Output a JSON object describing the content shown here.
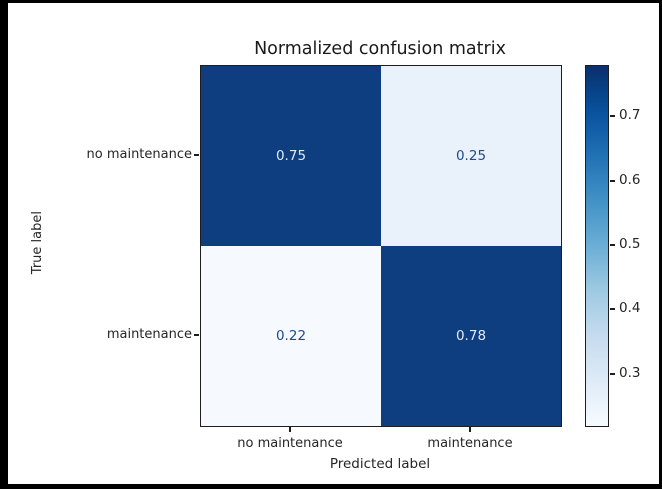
{
  "chart_data": {
    "type": "heatmap",
    "title": "Normalized confusion matrix",
    "xlabel": "Predicted label",
    "ylabel": "True label",
    "x_categories": [
      "no maintenance",
      "maintenance"
    ],
    "y_categories": [
      "no maintenance",
      "maintenance"
    ],
    "matrix": [
      [
        0.75,
        0.25
      ],
      [
        0.22,
        0.78
      ]
    ],
    "cell_labels": [
      [
        "0.75",
        "0.25"
      ],
      [
        "0.22",
        "0.78"
      ]
    ],
    "colormap": "Blues",
    "vmin": 0.22,
    "vmax": 0.78,
    "colorbar_ticks": [
      "0.3",
      "0.4",
      "0.5",
      "0.6",
      "0.7"
    ],
    "colorbar_position": "right",
    "grid": false,
    "colors": {
      "cell_high": "#0e3d80",
      "cell_low_025": "#e9f1fa",
      "cell_low_022": "#f6fafe",
      "value_text_on_dark": "#dfe9f5",
      "value_text_on_light": "#1f4c8f",
      "axis_text": "#262626",
      "figure_background": "#ffffff",
      "frame_border": "#000000"
    }
  }
}
